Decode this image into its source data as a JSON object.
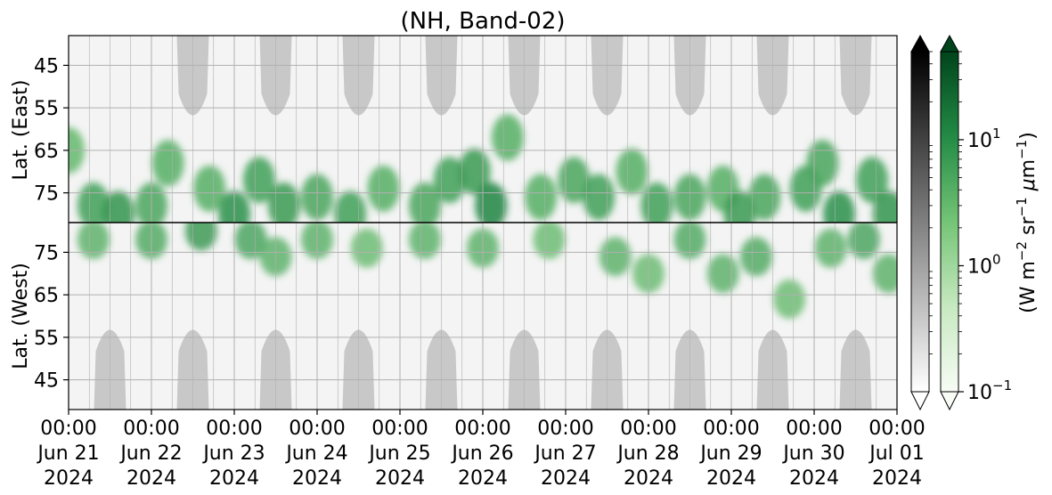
{
  "chart_data": {
    "type": "heatmap",
    "title": "(NH, Band-02)",
    "xlabel": "",
    "x_range": [
      "2024-06-21 00:00",
      "2024-07-01 00:00"
    ],
    "x_ticks": [
      {
        "time": "00:00",
        "date": "Jun 21",
        "year": "2024"
      },
      {
        "time": "00:00",
        "date": "Jun 22",
        "year": "2024"
      },
      {
        "time": "00:00",
        "date": "Jun 23",
        "year": "2024"
      },
      {
        "time": "00:00",
        "date": "Jun 24",
        "year": "2024"
      },
      {
        "time": "00:00",
        "date": "Jun 25",
        "year": "2024"
      },
      {
        "time": "00:00",
        "date": "Jun 26",
        "year": "2024"
      },
      {
        "time": "00:00",
        "date": "Jun 27",
        "year": "2024"
      },
      {
        "time": "00:00",
        "date": "Jun 28",
        "year": "2024"
      },
      {
        "time": "00:00",
        "date": "Jun 29",
        "year": "2024"
      },
      {
        "time": "00:00",
        "date": "Jun 30",
        "year": "2024"
      },
      {
        "time": "00:00",
        "date": "Jul 01",
        "year": "2024"
      }
    ],
    "panels": [
      {
        "ylabel": "Lat. (East)",
        "y_ticks": [
          "45",
          "55",
          "65",
          "75"
        ],
        "y_range": [
          38,
          82
        ]
      },
      {
        "ylabel": "Lat. (West)",
        "y_ticks": [
          "75",
          "65",
          "55",
          "45"
        ],
        "y_range": [
          82,
          38
        ]
      }
    ],
    "colorbars": [
      {
        "name": "gray",
        "colors": [
          "#ffffff",
          "#000000"
        ],
        "extend": "both"
      },
      {
        "name": "green",
        "colors": [
          "#f7fcf5",
          "#00441b"
        ],
        "extend": "both",
        "scale": "log",
        "range": [
          0.1,
          50
        ],
        "ticks": [
          {
            "value": 0.1,
            "base": "10",
            "exp": "−1"
          },
          {
            "value": 1,
            "base": "10",
            "exp": "0"
          },
          {
            "value": 10,
            "base": "10",
            "exp": "1"
          }
        ]
      }
    ],
    "colorbar_label": {
      "main1": "(W m",
      "exp1": "−2",
      "main2": " sr",
      "exp2": "−1",
      "mu": " μ",
      "main3": "m",
      "exp3": "−1",
      "close": ")"
    },
    "grid": true,
    "colors": {
      "green_dark": "#00441b",
      "green_light": "#f7fcf5",
      "gray_mask": "#c8c8c8"
    },
    "night_mask_east_peaks": [
      1.5,
      2.5,
      3.5,
      4.5,
      5.5,
      6.5,
      7.5,
      8.5,
      9.5
    ],
    "night_mask_west_peaks": [
      0.5,
      1.5,
      2.5,
      3.5,
      4.5,
      5.5,
      6.5,
      7.5,
      8.5,
      9.5
    ],
    "aurora_intensity_east": [
      {
        "day": 0.0,
        "lat": 65,
        "value": 3
      },
      {
        "day": 0.3,
        "lat": 78,
        "value": 6
      },
      {
        "day": 0.6,
        "lat": 80,
        "value": 8
      },
      {
        "day": 1.0,
        "lat": 78,
        "value": 5
      },
      {
        "day": 1.2,
        "lat": 68,
        "value": 4
      },
      {
        "day": 1.7,
        "lat": 74,
        "value": 4
      },
      {
        "day": 2.0,
        "lat": 80,
        "value": 9
      },
      {
        "day": 2.3,
        "lat": 72,
        "value": 6
      },
      {
        "day": 2.6,
        "lat": 78,
        "value": 7
      },
      {
        "day": 3.0,
        "lat": 76,
        "value": 5
      },
      {
        "day": 3.4,
        "lat": 80,
        "value": 6
      },
      {
        "day": 3.8,
        "lat": 74,
        "value": 4
      },
      {
        "day": 4.3,
        "lat": 78,
        "value": 5
      },
      {
        "day": 4.6,
        "lat": 72,
        "value": 6
      },
      {
        "day": 4.9,
        "lat": 70,
        "value": 7
      },
      {
        "day": 5.1,
        "lat": 78,
        "value": 12
      },
      {
        "day": 5.3,
        "lat": 62,
        "value": 4
      },
      {
        "day": 5.7,
        "lat": 76,
        "value": 4
      },
      {
        "day": 6.1,
        "lat": 72,
        "value": 5
      },
      {
        "day": 6.4,
        "lat": 76,
        "value": 6
      },
      {
        "day": 6.8,
        "lat": 70,
        "value": 4
      },
      {
        "day": 7.1,
        "lat": 78,
        "value": 6
      },
      {
        "day": 7.5,
        "lat": 76,
        "value": 5
      },
      {
        "day": 7.9,
        "lat": 74,
        "value": 4
      },
      {
        "day": 8.1,
        "lat": 80,
        "value": 7
      },
      {
        "day": 8.4,
        "lat": 76,
        "value": 5
      },
      {
        "day": 8.9,
        "lat": 74,
        "value": 6
      },
      {
        "day": 9.1,
        "lat": 68,
        "value": 5
      },
      {
        "day": 9.3,
        "lat": 80,
        "value": 9
      },
      {
        "day": 9.7,
        "lat": 72,
        "value": 6
      },
      {
        "day": 9.9,
        "lat": 80,
        "value": 8
      }
    ],
    "aurora_intensity_west": [
      {
        "day": 0.3,
        "lat": 78,
        "value": 4
      },
      {
        "day": 1.0,
        "lat": 78,
        "value": 5
      },
      {
        "day": 1.6,
        "lat": 80,
        "value": 8
      },
      {
        "day": 2.2,
        "lat": 78,
        "value": 6
      },
      {
        "day": 2.5,
        "lat": 74,
        "value": 4
      },
      {
        "day": 3.0,
        "lat": 78,
        "value": 4
      },
      {
        "day": 3.6,
        "lat": 76,
        "value": 3
      },
      {
        "day": 4.3,
        "lat": 78,
        "value": 4
      },
      {
        "day": 5.0,
        "lat": 76,
        "value": 4
      },
      {
        "day": 5.8,
        "lat": 78,
        "value": 3
      },
      {
        "day": 6.6,
        "lat": 74,
        "value": 4
      },
      {
        "day": 7.0,
        "lat": 70,
        "value": 3
      },
      {
        "day": 7.5,
        "lat": 78,
        "value": 5
      },
      {
        "day": 7.9,
        "lat": 70,
        "value": 4
      },
      {
        "day": 8.3,
        "lat": 74,
        "value": 5
      },
      {
        "day": 8.7,
        "lat": 64,
        "value": 3
      },
      {
        "day": 9.2,
        "lat": 76,
        "value": 4
      },
      {
        "day": 9.6,
        "lat": 78,
        "value": 6
      },
      {
        "day": 9.9,
        "lat": 70,
        "value": 4
      }
    ]
  }
}
